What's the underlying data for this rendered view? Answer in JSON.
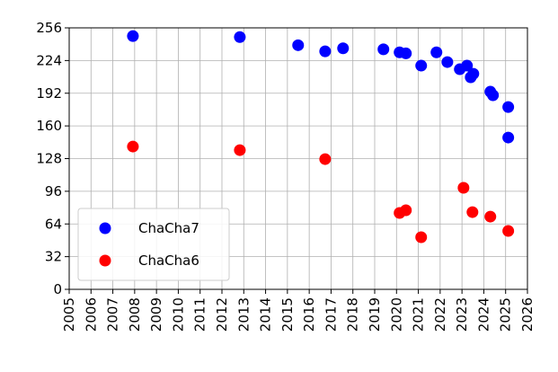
{
  "chart_data": {
    "type": "scatter",
    "xlim": [
      2005,
      2026
    ],
    "xticks": [
      2005,
      2006,
      2007,
      2008,
      2009,
      2010,
      2011,
      2012,
      2013,
      2014,
      2015,
      2016,
      2017,
      2018,
      2019,
      2020,
      2021,
      2022,
      2023,
      2024,
      2025,
      2026
    ],
    "ylim": [
      0,
      256
    ],
    "yticks": [
      0,
      32,
      64,
      96,
      128,
      160,
      192,
      224,
      256
    ],
    "grid": true,
    "legend": "lower left",
    "series": [
      {
        "name": "ChaCha7",
        "color": "#0000ff",
        "x": [
          2007.92,
          2012.82,
          2015.49,
          2016.73,
          2017.55,
          2019.4,
          2020.14,
          2020.43,
          2021.13,
          2021.83,
          2022.33,
          2022.9,
          2023.23,
          2023.4,
          2023.52,
          2024.3,
          2024.42,
          2025.12,
          2025.12
        ],
        "values": [
          248,
          247,
          239,
          233,
          236,
          235,
          232,
          231,
          219,
          232,
          222.5,
          215.5,
          219,
          207.6,
          211,
          193.5,
          190,
          178.5,
          148.6
        ]
      },
      {
        "name": "ChaCha6",
        "color": "#ff0000",
        "x": [
          2007.92,
          2012.82,
          2016.73,
          2020.14,
          2020.43,
          2021.13,
          2023.07,
          2023.48,
          2024.3,
          2025.12
        ],
        "values": [
          139.8,
          136.3,
          127.5,
          74.8,
          77.4,
          51,
          99.4,
          75.6,
          71.2,
          57.2
        ]
      }
    ]
  }
}
